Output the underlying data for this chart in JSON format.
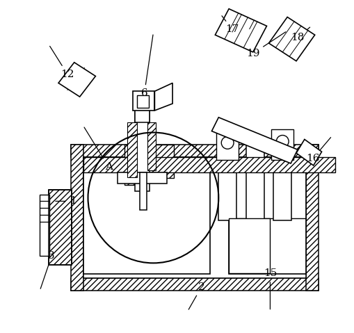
{
  "bg_color": "#ffffff",
  "lc": "#000000",
  "figsize": [
    5.1,
    4.79
  ],
  "dpi": 100
}
